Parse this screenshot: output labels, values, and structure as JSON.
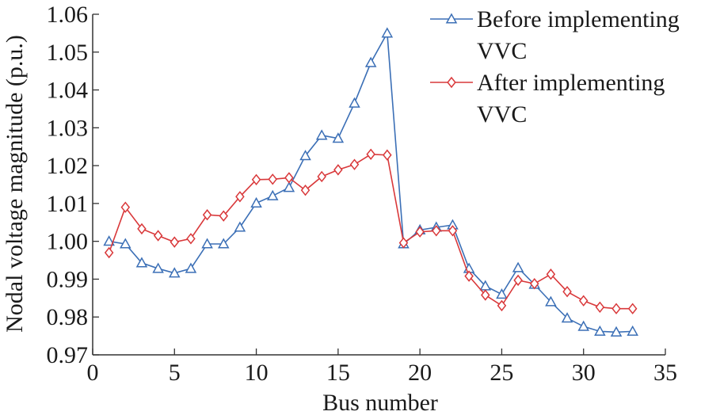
{
  "chart_data": {
    "type": "line",
    "xlabel": "Bus number",
    "ylabel": "Nodal voltage magnitude (p.u.)",
    "xlim": [
      0,
      35
    ],
    "ylim": [
      0.97,
      1.06
    ],
    "x_ticks": [
      "0",
      "5",
      "10",
      "15",
      "20",
      "25",
      "30",
      "35"
    ],
    "y_ticks": [
      "0.97",
      "0.98",
      "0.99",
      "1.00",
      "1.01",
      "1.02",
      "1.03",
      "1.04",
      "1.05",
      "1.06"
    ],
    "grid": false,
    "legend_position": "top-right",
    "x": [
      1,
      2,
      3,
      4,
      5,
      6,
      7,
      8,
      9,
      10,
      11,
      12,
      13,
      14,
      15,
      16,
      17,
      18,
      19,
      20,
      21,
      22,
      23,
      24,
      25,
      26,
      27,
      28,
      29,
      30,
      31,
      32,
      33
    ],
    "series": [
      {
        "name_lines": [
          "Before implementing",
          "VVC"
        ],
        "color": "#3b6fb6",
        "marker": "triangle",
        "values": [
          1.0,
          0.9993,
          0.9943,
          0.9928,
          0.9916,
          0.9928,
          0.9993,
          0.9993,
          1.0037,
          1.0101,
          1.012,
          1.0142,
          1.0226,
          1.028,
          1.0272,
          1.0365,
          1.0472,
          1.055,
          0.9993,
          1.003,
          1.0037,
          1.0043,
          0.9928,
          0.9882,
          0.986,
          0.993,
          0.9886,
          0.984,
          0.9797,
          0.9775,
          0.9762,
          0.976,
          0.9762
        ]
      },
      {
        "name_lines": [
          "After implementing",
          "VVC"
        ],
        "color": "#d9383a",
        "marker": "diamond",
        "values": [
          0.997,
          1.009,
          1.0033,
          1.0015,
          0.9998,
          1.0007,
          1.007,
          1.0067,
          1.0118,
          1.0163,
          1.0164,
          1.0168,
          1.0135,
          1.0171,
          1.0189,
          1.0203,
          1.023,
          1.0228,
          0.9996,
          1.0025,
          1.0028,
          1.0028,
          0.9908,
          0.9858,
          0.983,
          0.9897,
          0.9888,
          0.9913,
          0.9867,
          0.9843,
          0.9826,
          0.9822,
          0.9822
        ]
      }
    ]
  }
}
